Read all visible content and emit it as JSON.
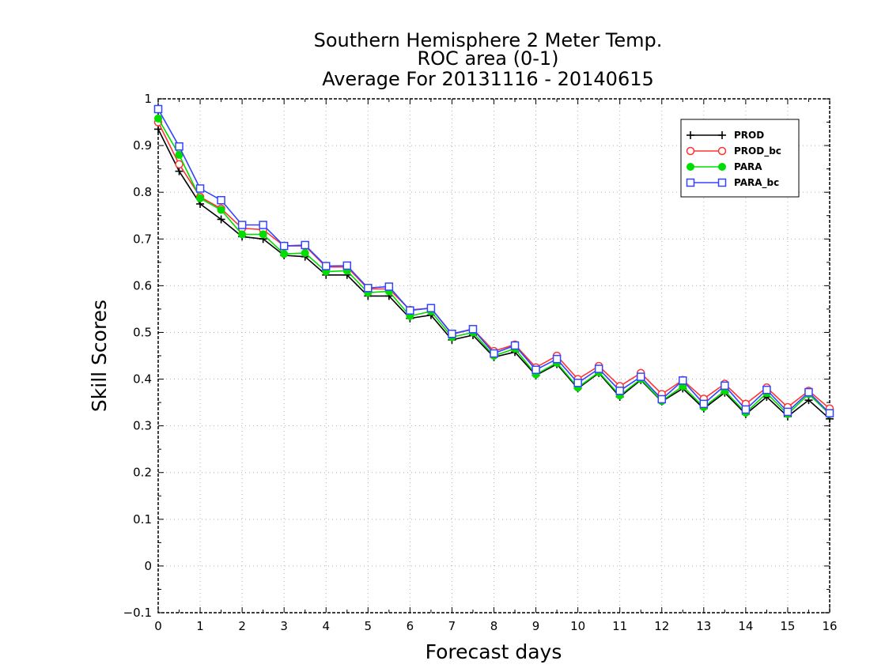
{
  "chart_data": {
    "type": "line",
    "title": [
      "Southern Hemisphere 2 Meter Temp.",
      "ROC area (0-1)",
      "Average For 20131116 - 20140615"
    ],
    "xlabel": "Forecast days",
    "ylabel": "Skill Scores",
    "xlim": [
      0,
      16
    ],
    "ylim": [
      -0.1,
      1
    ],
    "x_ticks": [
      "0",
      "1",
      "2",
      "3",
      "4",
      "5",
      "6",
      "7",
      "8",
      "9",
      "10",
      "11",
      "12",
      "13",
      "14",
      "15",
      "16"
    ],
    "y_ticks": [
      "−0.1",
      "0",
      "0.1",
      "0.2",
      "0.3",
      "0.4",
      "0.5",
      "0.6",
      "0.7",
      "0.8",
      "0.9",
      "1"
    ],
    "grid": true,
    "legend_position": "top-right",
    "x": [
      0,
      0.5,
      1,
      1.5,
      2,
      2.5,
      3,
      3.5,
      4,
      4.5,
      5,
      5.5,
      6,
      6.5,
      7,
      7.5,
      8,
      8.5,
      9,
      9.5,
      10,
      10.5,
      11,
      11.5,
      12,
      12.5,
      13,
      13.5,
      14,
      14.5,
      15,
      15.5,
      16
    ],
    "series": [
      {
        "name": "PROD",
        "color": "#000000",
        "marker": "plus",
        "values": [
          0.935,
          0.845,
          0.775,
          0.742,
          0.705,
          0.7,
          0.665,
          0.662,
          0.623,
          0.623,
          0.578,
          0.578,
          0.53,
          0.537,
          0.484,
          0.494,
          0.447,
          0.458,
          0.408,
          0.432,
          0.38,
          0.413,
          0.362,
          0.398,
          0.352,
          0.38,
          0.337,
          0.371,
          0.325,
          0.362,
          0.32,
          0.355,
          0.315
        ]
      },
      {
        "name": "PROD_bc",
        "color": "#ff3333",
        "marker": "circle",
        "values": [
          0.95,
          0.86,
          0.79,
          0.765,
          0.723,
          0.72,
          0.685,
          0.685,
          0.64,
          0.64,
          0.593,
          0.593,
          0.548,
          0.552,
          0.496,
          0.507,
          0.46,
          0.474,
          0.425,
          0.45,
          0.4,
          0.428,
          0.385,
          0.413,
          0.368,
          0.398,
          0.358,
          0.39,
          0.347,
          0.382,
          0.34,
          0.375,
          0.337
        ]
      },
      {
        "name": "PARA",
        "color": "#00dd00",
        "marker": "dot",
        "values": [
          0.958,
          0.88,
          0.787,
          0.762,
          0.71,
          0.71,
          0.668,
          0.67,
          0.63,
          0.632,
          0.585,
          0.588,
          0.535,
          0.545,
          0.49,
          0.5,
          0.45,
          0.465,
          0.41,
          0.435,
          0.382,
          0.415,
          0.365,
          0.4,
          0.353,
          0.385,
          0.34,
          0.375,
          0.328,
          0.37,
          0.325,
          0.368,
          0.325
        ]
      },
      {
        "name": "PARA_bc",
        "color": "#3344ff",
        "marker": "square",
        "values": [
          0.978,
          0.898,
          0.808,
          0.783,
          0.73,
          0.73,
          0.685,
          0.687,
          0.642,
          0.643,
          0.595,
          0.598,
          0.547,
          0.552,
          0.497,
          0.507,
          0.455,
          0.472,
          0.42,
          0.443,
          0.392,
          0.422,
          0.375,
          0.405,
          0.357,
          0.397,
          0.347,
          0.386,
          0.335,
          0.377,
          0.33,
          0.372,
          0.327
        ]
      }
    ]
  }
}
